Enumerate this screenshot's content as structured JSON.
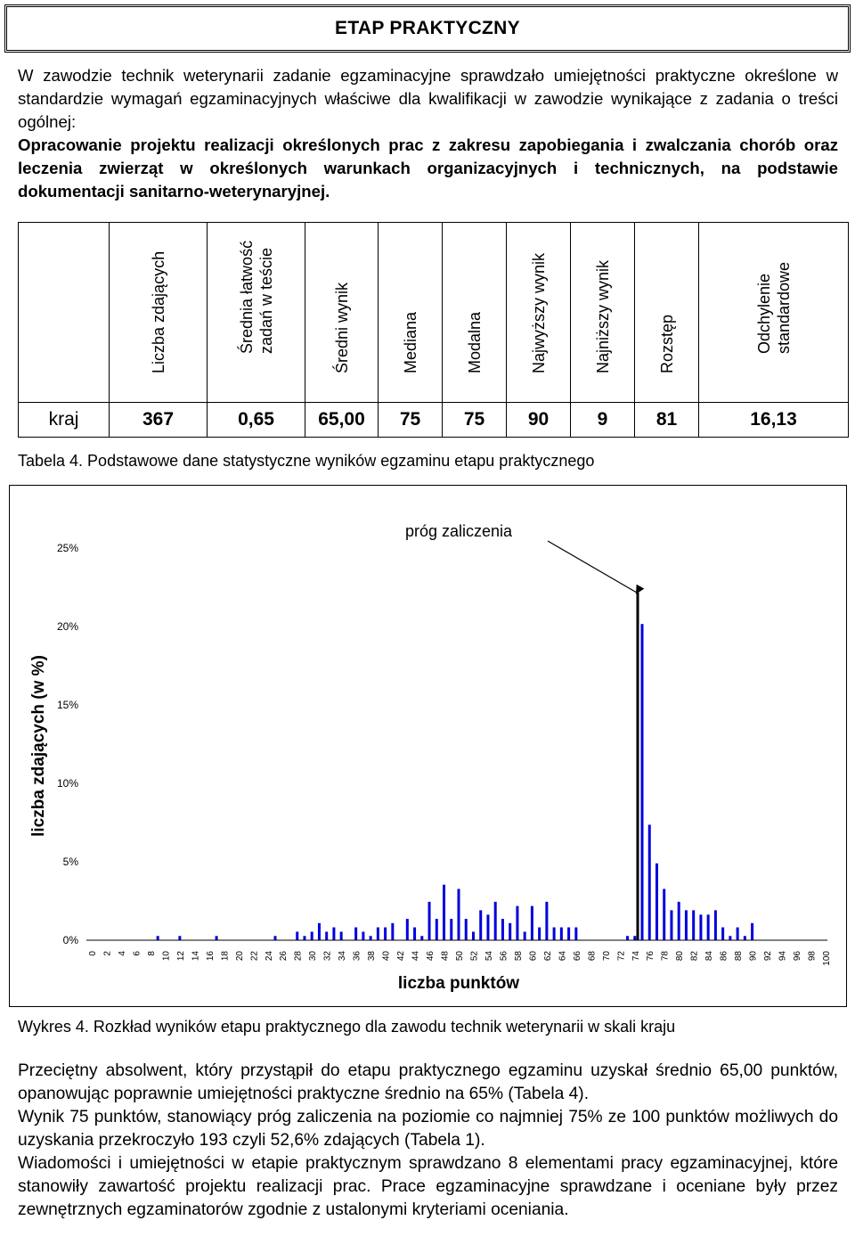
{
  "header": {
    "title": "ETAP PRAKTYCZNY"
  },
  "intro": {
    "normal": "W zawodzie technik weterynarii zadanie egzaminacyjne sprawdzało umiejętności praktyczne określone w standardzie wymagań egzaminacyjnych właściwe dla kwalifikacji w zawodzie wynikające z zadania o treści ogólnej:",
    "bold": "Opracowanie projektu realizacji określonych prac z zakresu zapobiegania i zwalczania chorób oraz leczenia zwierząt w określonych warunkach organizacyjnych i technicznych, na podstawie dokumentacji sanitarno-weterynaryjnej."
  },
  "stats_table": {
    "headers": [
      "Liczba zdających",
      "Średnia łatwość zadań w teście",
      "Średni wynik",
      "Mediana",
      "Modalna",
      "Najwyższy wynik",
      "Najniższy wynik",
      "Rozstęp",
      "Odchylenie standardowe"
    ],
    "row": {
      "label": "kraj",
      "values": [
        "367",
        "0,65",
        "65,00",
        "75",
        "75",
        "90",
        "9",
        "81",
        "16,13"
      ]
    }
  },
  "caption_table": "Tabela 4. Podstawowe dane statystyczne wyników egzaminu etapu praktycznego",
  "chart": {
    "annotation": "próg zaliczenia",
    "colors": {
      "bars": "#0000dd",
      "threshold": "#000000"
    }
  },
  "chart_data": {
    "type": "bar",
    "xlabel": "liczba punktów",
    "ylabel": "liczba zdających (w %)",
    "ylim": [
      0,
      25
    ],
    "yticks": [
      "0%",
      "5%",
      "10%",
      "15%",
      "20%",
      "25%"
    ],
    "xticks": [
      "0",
      "2",
      "4",
      "6",
      "8",
      "10",
      "12",
      "14",
      "16",
      "18",
      "20",
      "22",
      "24",
      "26",
      "28",
      "30",
      "32",
      "34",
      "36",
      "38",
      "40",
      "42",
      "44",
      "46",
      "48",
      "50",
      "52",
      "54",
      "56",
      "58",
      "60",
      "62",
      "64",
      "66",
      "68",
      "70",
      "72",
      "74",
      "76",
      "78",
      "80",
      "82",
      "84",
      "86",
      "88",
      "90",
      "92",
      "94",
      "96",
      "98",
      "100"
    ],
    "threshold": 75,
    "x": [
      9,
      12,
      17,
      25,
      28,
      29,
      30,
      31,
      32,
      33,
      34,
      36,
      37,
      38,
      39,
      40,
      41,
      43,
      44,
      45,
      46,
      47,
      48,
      49,
      50,
      51,
      52,
      53,
      54,
      55,
      56,
      57,
      58,
      59,
      60,
      61,
      62,
      63,
      64,
      65,
      66,
      73,
      74,
      75,
      76,
      77,
      78,
      79,
      80,
      81,
      82,
      83,
      84,
      85,
      86,
      87,
      88,
      89,
      90
    ],
    "values": [
      0.27,
      0.27,
      0.27,
      0.27,
      0.54,
      0.27,
      0.54,
      1.09,
      0.54,
      0.82,
      0.54,
      0.82,
      0.54,
      0.27,
      0.82,
      0.82,
      1.09,
      1.36,
      0.82,
      0.27,
      2.45,
      1.36,
      3.54,
      1.36,
      3.27,
      1.36,
      0.54,
      1.91,
      1.63,
      2.45,
      1.36,
      1.09,
      2.18,
      0.54,
      2.18,
      0.82,
      2.45,
      0.82,
      0.82,
      0.82,
      0.82,
      0.27,
      0.27,
      20.16,
      7.36,
      4.9,
      3.27,
      1.91,
      2.45,
      1.91,
      1.91,
      1.63,
      1.63,
      1.91,
      0.82,
      0.27,
      0.82,
      0.27,
      1.09
    ]
  },
  "caption_chart": "Wykres 4. Rozkład wyników etapu praktycznego dla zawodu technik weterynarii w skali kraju",
  "outro": {
    "p1": "Przeciętny absolwent, który przystąpił do etapu praktycznego egzaminu uzyskał średnio 65,00 punktów, opanowując poprawnie umiejętności praktyczne średnio na 65% (Tabela 4).",
    "p2": "Wynik 75 punktów, stanowiący próg zaliczenia na poziomie co najmniej 75% ze 100 punktów możliwych do uzyskania przekroczyło 193 czyli 52,6% zdających (Tabela 1).",
    "p3": "Wiadomości i umiejętności w etapie praktycznym sprawdzano 8 elementami pracy egzaminacyjnej, które stanowiły zawartość projektu realizacji prac. Prace egzaminacyjne sprawdzane i oceniane były przez zewnętrznych egzaminatorów zgodnie z ustalonymi kryteriami oceniania."
  }
}
